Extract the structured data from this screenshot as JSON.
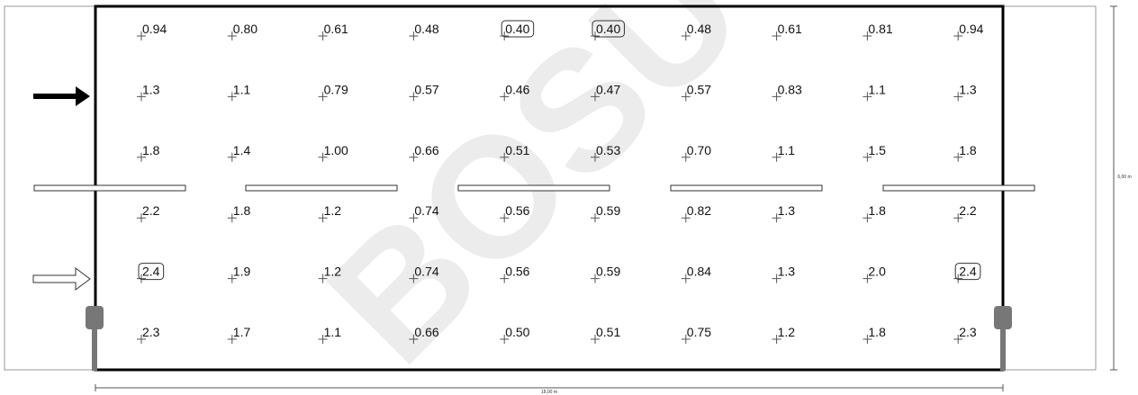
{
  "grid": {
    "rows": [
      [
        {
          "text": "0.94"
        },
        {
          "text": "0.80"
        },
        {
          "text": "0.61"
        },
        {
          "text": "0.48"
        },
        {
          "text": "0.40",
          "boxed": true
        },
        {
          "text": "0.40",
          "boxed": true
        },
        {
          "text": "0.48"
        },
        {
          "text": "0.61"
        },
        {
          "text": "0.81"
        },
        {
          "text": "0.94"
        }
      ],
      [
        {
          "text": "1.3"
        },
        {
          "text": "1.1"
        },
        {
          "text": "0.79"
        },
        {
          "text": "0.57"
        },
        {
          "text": "0.46"
        },
        {
          "text": "0.47"
        },
        {
          "text": "0.57"
        },
        {
          "text": "0.83"
        },
        {
          "text": "1.1"
        },
        {
          "text": "1.3"
        }
      ],
      [
        {
          "text": "1.8"
        },
        {
          "text": "1.4"
        },
        {
          "text": "1.00"
        },
        {
          "text": "0.66"
        },
        {
          "text": "0.51"
        },
        {
          "text": "0.53"
        },
        {
          "text": "0.70"
        },
        {
          "text": "1.1"
        },
        {
          "text": "1.5"
        },
        {
          "text": "1.8"
        }
      ],
      [
        {
          "text": "2.2"
        },
        {
          "text": "1.8"
        },
        {
          "text": "1.2"
        },
        {
          "text": "0.74"
        },
        {
          "text": "0.56"
        },
        {
          "text": "0.59"
        },
        {
          "text": "0.82"
        },
        {
          "text": "1.3"
        },
        {
          "text": "1.8"
        },
        {
          "text": "2.2"
        }
      ],
      [
        {
          "text": "2.4",
          "boxed": true
        },
        {
          "text": "1.9"
        },
        {
          "text": "1.2"
        },
        {
          "text": "0.74"
        },
        {
          "text": "0.56"
        },
        {
          "text": "0.59"
        },
        {
          "text": "0.84"
        },
        {
          "text": "1.3"
        },
        {
          "text": "2.0"
        },
        {
          "text": "2.4",
          "boxed": true
        }
      ],
      [
        {
          "text": "2.3"
        },
        {
          "text": "1.7"
        },
        {
          "text": "1.1"
        },
        {
          "text": "0.66"
        },
        {
          "text": "0.50"
        },
        {
          "text": "0.51"
        },
        {
          "text": "0.75"
        },
        {
          "text": "1.2"
        },
        {
          "text": "1.8"
        },
        {
          "text": "2.3"
        }
      ]
    ]
  },
  "dimensions": {
    "width": "18,00 m",
    "height": "6,00 m"
  },
  "watermark": "BOSU"
}
